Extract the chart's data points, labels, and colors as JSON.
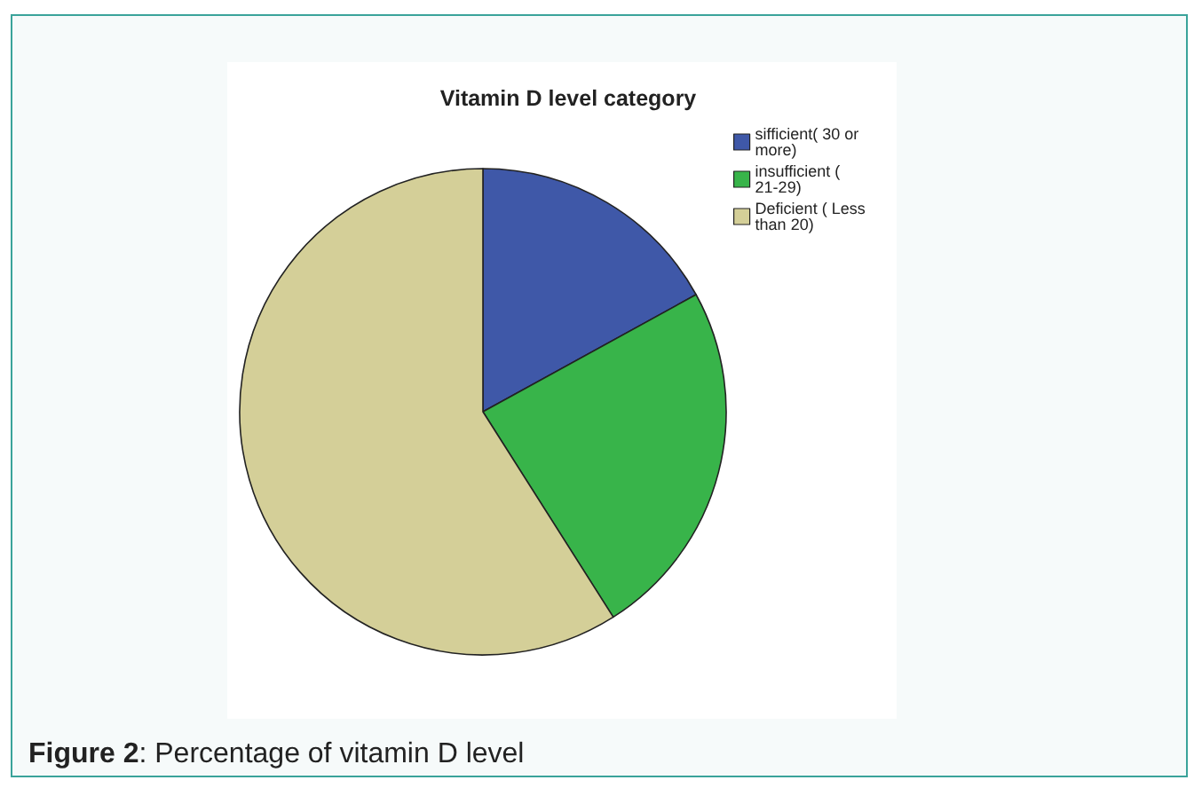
{
  "chart_data": {
    "type": "pie",
    "title": "Vitamin D level category",
    "categories": [
      "sifficient( 30 or more)",
      "insufficient ( 21-29)",
      "Deficient ( Less than 20)"
    ],
    "values": [
      17,
      24,
      59
    ],
    "colors": [
      "#3f58a8",
      "#38b44a",
      "#d4cf98"
    ],
    "legend": "top right",
    "annotations": [
      "Figure 2: Percentage of vitamin D level"
    ]
  }
}
